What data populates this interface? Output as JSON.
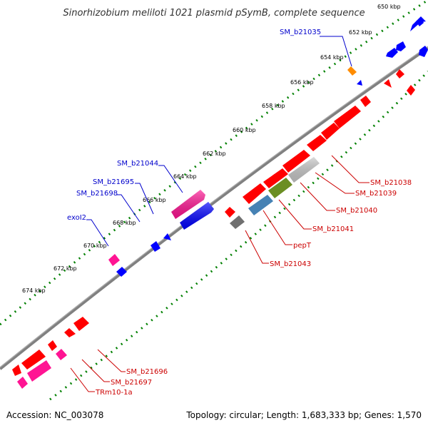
{
  "title": "Sinorhizobium meliloti 1021 plasmid pSymB, complete sequence",
  "footer": {
    "accession": "Accession: NC_003078",
    "summary": "Topology: circular; Length: 1,683,333 bp; Genes: 1,570"
  },
  "colors": {
    "backbone": "#808080",
    "tick_track": "#008000",
    "forward_label": "#0000cc",
    "reverse_label": "#cc0000",
    "red_gene": "#ff0000",
    "blue_gene": "#0000ff",
    "magenta_gene": "#ff1493",
    "orange_gene": "#ff8c00",
    "gray_gene": "#707070",
    "steel_gene": "#4682b4",
    "olive_gene": "#6b8e23",
    "silver_gene": "#c8c8c8"
  },
  "scale_marks": [
    "650 kbp",
    "652 kbp",
    "654 kbp",
    "656 kbp",
    "658 kbp",
    "660 kbp",
    "662 kbp",
    "664 kbp",
    "666 kbp",
    "668 kbp",
    "670 kbp",
    "672 kbp",
    "674 kbp"
  ],
  "forward_labels": [
    "SM_b21035",
    "SM_b21044",
    "SM_b21695",
    "SM_b21698",
    "exoI2"
  ],
  "reverse_labels": [
    "SM_b21038",
    "SM_b21039",
    "SM_b21040",
    "SM_b21041",
    "pepT",
    "SM_b21043",
    "SM_b21696",
    "SM_b21697",
    "TRm10-1a"
  ]
}
